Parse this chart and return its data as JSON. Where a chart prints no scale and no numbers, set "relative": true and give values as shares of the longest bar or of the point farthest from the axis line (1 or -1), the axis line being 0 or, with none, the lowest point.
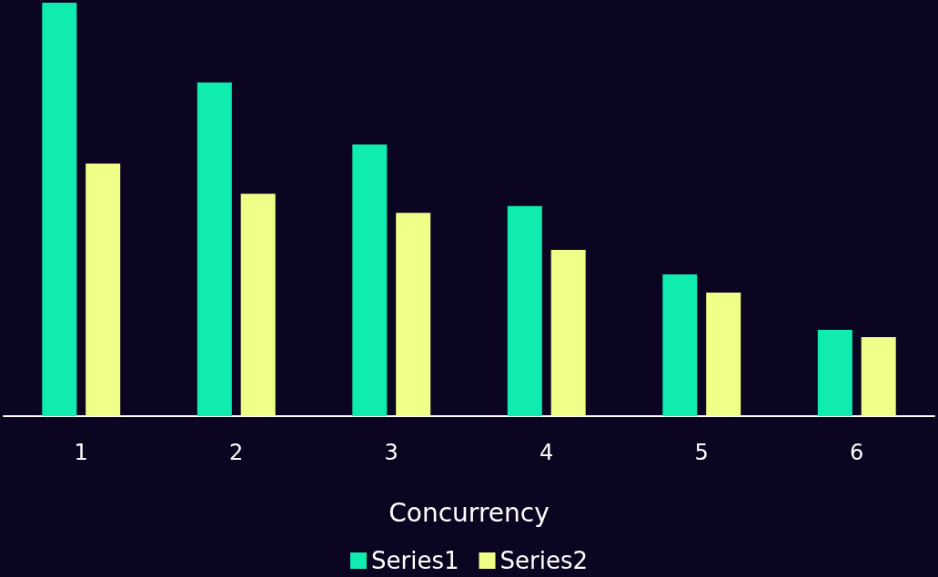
{
  "chart_data": {
    "type": "bar",
    "relative": true,
    "xlabel": "Concurrency",
    "categories": [
      "1",
      "2",
      "3",
      "4",
      "5",
      "6"
    ],
    "series": [
      {
        "name": "Series1",
        "color": "#10ecb0",
        "values": [
          1,
          0.807,
          0.657,
          0.508,
          0.343,
          0.209
        ]
      },
      {
        "name": "Series2",
        "color": "#f0ff88",
        "values": [
          0.611,
          0.538,
          0.492,
          0.402,
          0.299,
          0.191
        ]
      }
    ],
    "legend": "bottom"
  }
}
